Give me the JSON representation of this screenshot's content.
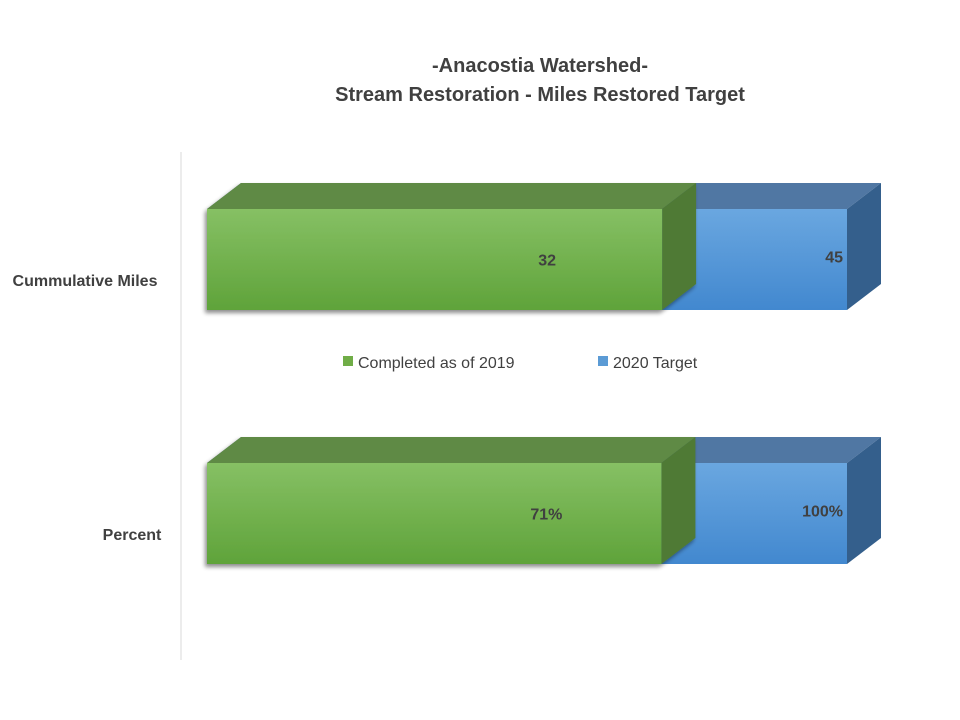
{
  "chart_data": {
    "type": "bar",
    "orientation": "horizontal",
    "style": "3d-stacked-overlap",
    "title": [
      "-Anacostia Watershed-",
      "Stream Restoration - Miles Restored Target"
    ],
    "xlabel": "",
    "ylabel": "",
    "grid": false,
    "legend_position": "center",
    "categories": [
      "Cummulative Miles",
      "Percent"
    ],
    "series": [
      {
        "name": "Completed as of 2019",
        "color": "#70AD47",
        "values": [
          32,
          71
        ],
        "labels": [
          "32",
          "71%"
        ]
      },
      {
        "name": "2020 Target",
        "color": "#5B9BD5",
        "values": [
          45,
          100
        ],
        "labels": [
          "45",
          "100%"
        ]
      }
    ],
    "xlim_per_category": [
      [
        0,
        45
      ],
      [
        0,
        100
      ]
    ]
  }
}
